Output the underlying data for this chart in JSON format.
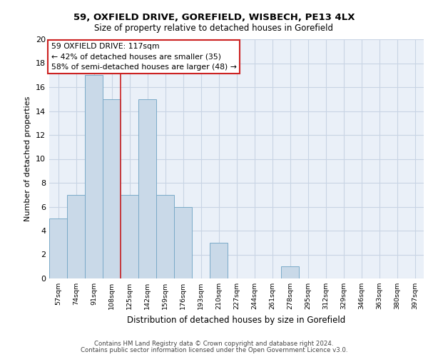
{
  "title1": "59, OXFIELD DRIVE, GOREFIELD, WISBECH, PE13 4LX",
  "title2": "Size of property relative to detached houses in Gorefield",
  "xlabel": "Distribution of detached houses by size in Gorefield",
  "ylabel": "Number of detached properties",
  "bin_labels": [
    "57sqm",
    "74sqm",
    "91sqm",
    "108sqm",
    "125sqm",
    "142sqm",
    "159sqm",
    "176sqm",
    "193sqm",
    "210sqm",
    "227sqm",
    "244sqm",
    "261sqm",
    "278sqm",
    "295sqm",
    "312sqm",
    "329sqm",
    "346sqm",
    "363sqm",
    "380sqm",
    "397sqm"
  ],
  "bar_values": [
    5,
    7,
    17,
    15,
    7,
    15,
    7,
    6,
    0,
    3,
    0,
    0,
    0,
    1,
    0,
    0,
    0,
    0,
    0,
    0,
    0
  ],
  "bar_color": "#c9d9e8",
  "bar_edgecolor": "#7aaac8",
  "grid_color": "#c8d4e4",
  "background_color": "#eaf0f8",
  "vline_after_index": 3,
  "vline_color": "#cc2222",
  "annotation_text": "59 OXFIELD DRIVE: 117sqm\n← 42% of detached houses are smaller (35)\n58% of semi-detached houses are larger (48) →",
  "annotation_box_facecolor": "#ffffff",
  "annotation_box_edgecolor": "#cc2222",
  "footnote1": "Contains HM Land Registry data © Crown copyright and database right 2024.",
  "footnote2": "Contains public sector information licensed under the Open Government Licence v3.0.",
  "ylim": [
    0,
    20
  ],
  "yticks": [
    0,
    2,
    4,
    6,
    8,
    10,
    12,
    14,
    16,
    18,
    20
  ]
}
